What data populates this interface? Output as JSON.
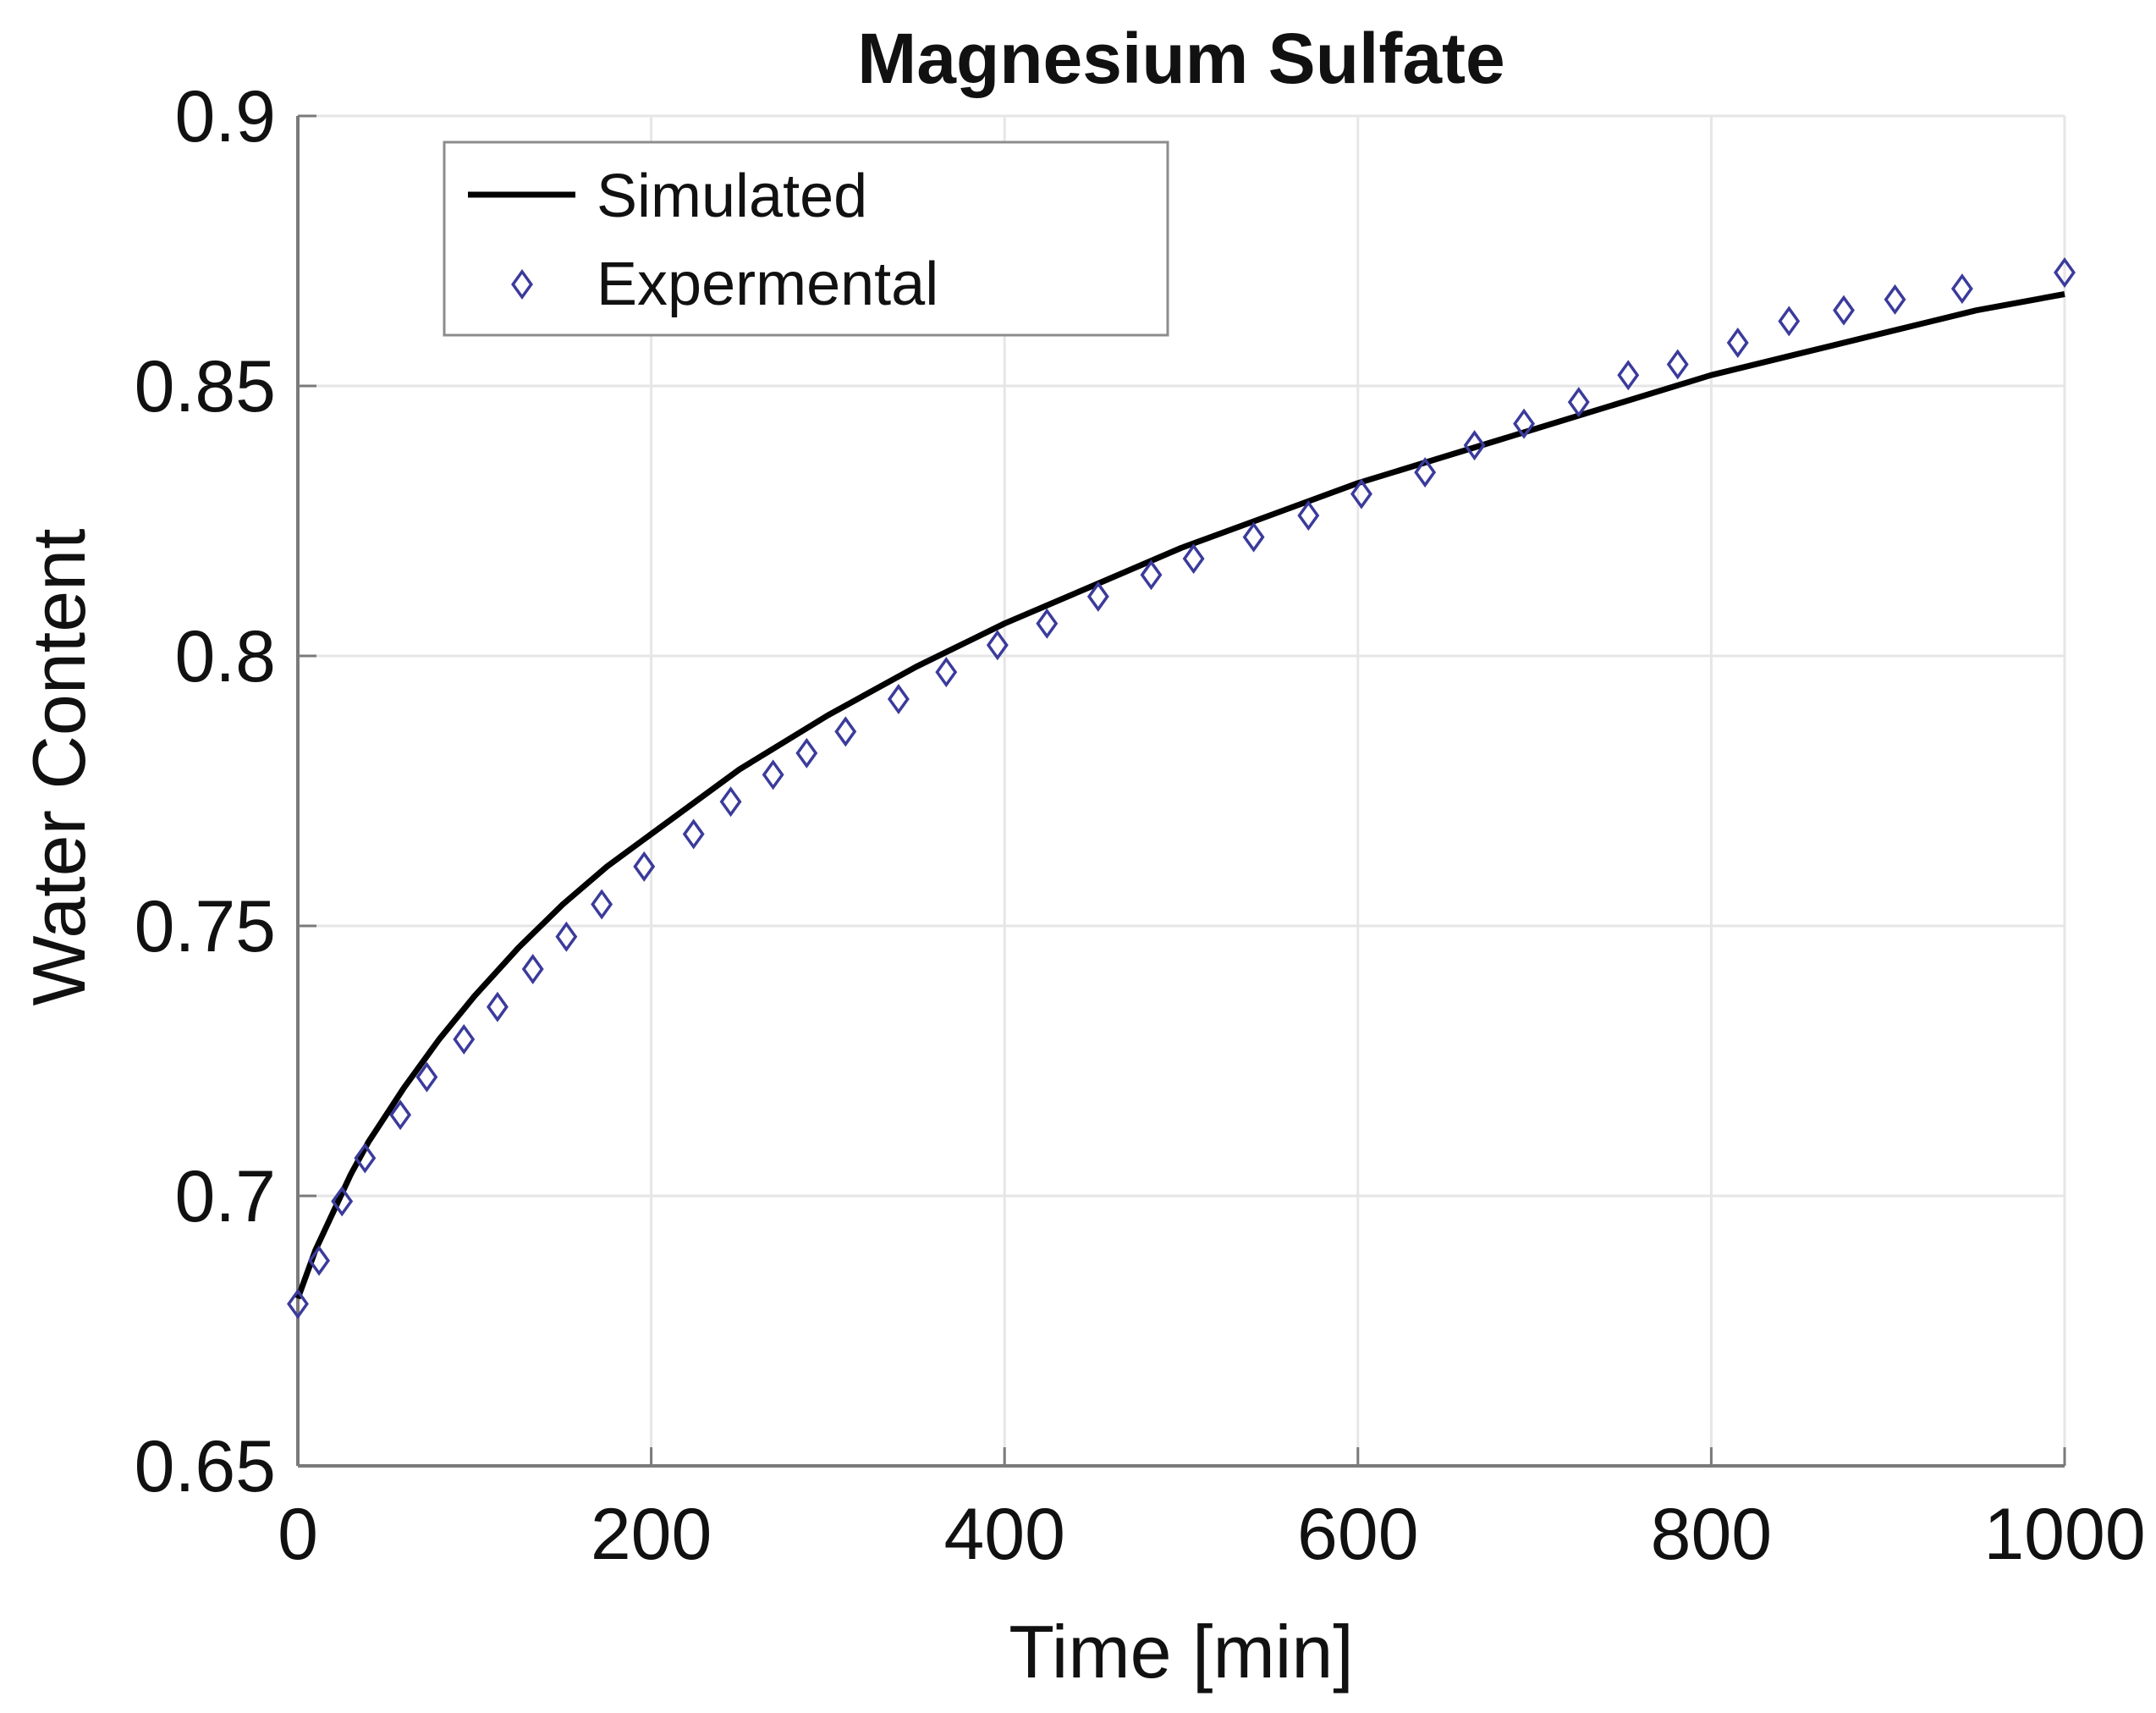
{
  "chart_data": {
    "type": "line",
    "title": "Magnesium Sulfate",
    "xlabel": "Time [min]",
    "ylabel": "Water Content",
    "xlim": [
      0,
      1000
    ],
    "ylim": [
      0.65,
      0.9
    ],
    "xticks": [
      0,
      200,
      400,
      600,
      800,
      1000
    ],
    "xtick_labels": [
      "0",
      "200",
      "400",
      "600",
      "800",
      "1000"
    ],
    "yticks": [
      0.65,
      0.7,
      0.75,
      0.8,
      0.85,
      0.9
    ],
    "ytick_labels": [
      "0.65",
      "0.7",
      "0.75",
      "0.8",
      "0.85",
      "0.9"
    ],
    "grid": true,
    "legend_position": "top-left",
    "colors": {
      "simulated": "#000000",
      "experimental": "#3b3b9c",
      "grid": "#e6e6e6",
      "axis": "#7a7a7a"
    },
    "series": [
      {
        "name": "Simulated",
        "style": "solid-line",
        "x": [
          0,
          10,
          20,
          30,
          40,
          50,
          60,
          80,
          100,
          125,
          150,
          175,
          200,
          250,
          300,
          350,
          400,
          450,
          500,
          550,
          600,
          650,
          700,
          750,
          800,
          850,
          900,
          950,
          1000
        ],
        "y": [
          0.681,
          0.69,
          0.697,
          0.704,
          0.71,
          0.715,
          0.72,
          0.729,
          0.737,
          0.746,
          0.754,
          0.761,
          0.767,
          0.779,
          0.789,
          0.798,
          0.806,
          0.813,
          0.82,
          0.826,
          0.832,
          0.837,
          0.842,
          0.847,
          0.852,
          0.856,
          0.86,
          0.864,
          0.867
        ]
      },
      {
        "name": "Expermental",
        "style": "diamond-markers",
        "x": [
          0,
          12,
          25,
          38,
          58,
          73,
          94,
          113,
          133,
          152,
          172,
          196,
          224,
          245,
          269,
          288,
          310,
          340,
          367,
          396,
          424,
          453,
          483,
          507,
          541,
          572,
          602,
          638,
          666,
          694,
          725,
          753,
          781,
          815,
          844,
          875,
          904,
          942,
          1000
        ],
        "y": [
          0.68,
          0.688,
          0.699,
          0.707,
          0.715,
          0.722,
          0.729,
          0.735,
          0.742,
          0.748,
          0.754,
          0.761,
          0.767,
          0.773,
          0.778,
          0.782,
          0.786,
          0.792,
          0.797,
          0.802,
          0.806,
          0.811,
          0.815,
          0.818,
          0.822,
          0.826,
          0.83,
          0.834,
          0.839,
          0.843,
          0.847,
          0.852,
          0.854,
          0.858,
          0.862,
          0.864,
          0.866,
          0.868,
          0.871
        ]
      }
    ]
  }
}
